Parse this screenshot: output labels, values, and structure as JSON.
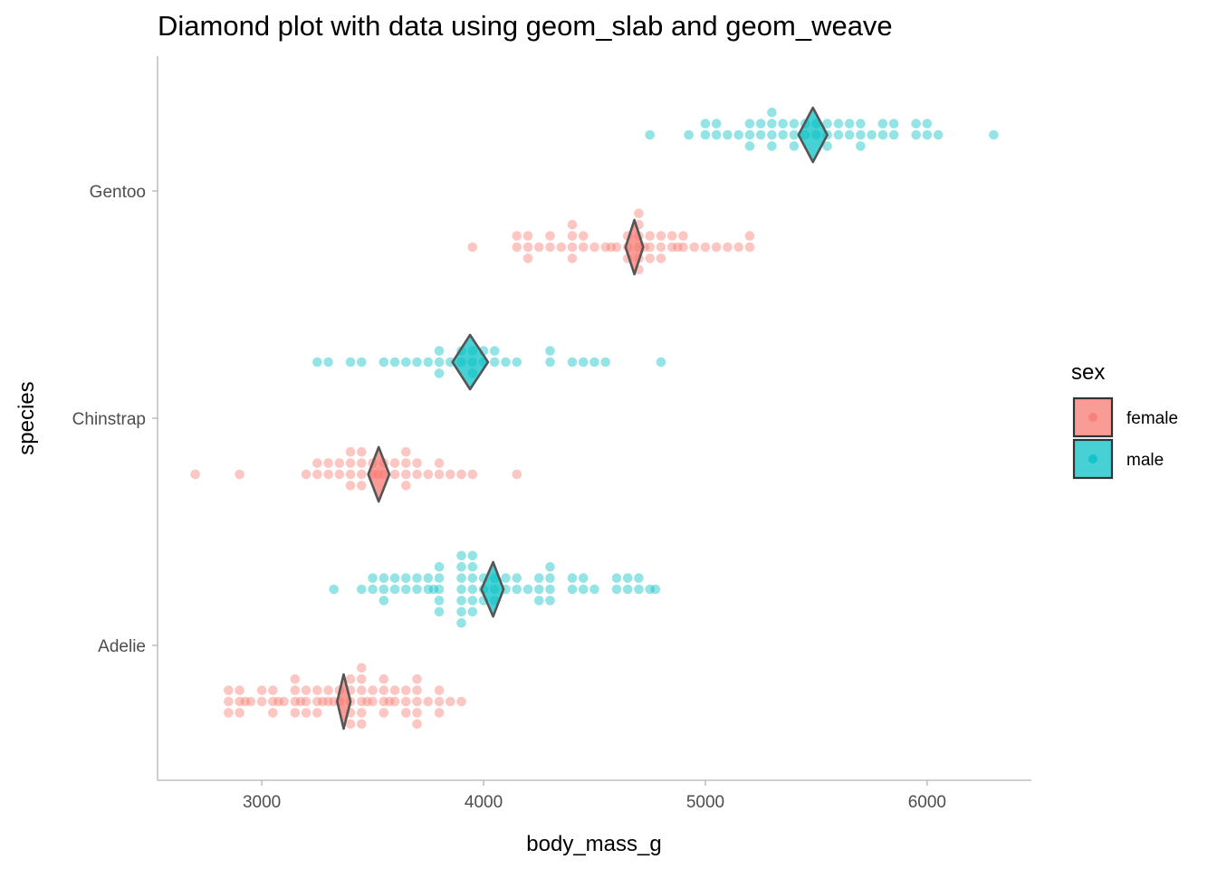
{
  "chart_data": {
    "type": "scatter",
    "title": "Diamond plot with data using geom_slab and geom_weave",
    "xlabel": "body_mass_g",
    "ylabel": "species",
    "xlim": [
      2530,
      6470
    ],
    "x_ticks": [
      3000,
      4000,
      5000,
      6000
    ],
    "categories": [
      "Adelie",
      "Chinstrap",
      "Gentoo"
    ],
    "grid": false,
    "legend": {
      "title": "sex",
      "position": "right",
      "entries": [
        {
          "name": "female",
          "color": "#F8766D"
        },
        {
          "name": "male",
          "color": "#00BFC4"
        }
      ]
    },
    "series": [
      {
        "name": "female",
        "color": "#F8766D",
        "groups": [
          {
            "species": "Adelie",
            "mean": 3369,
            "diamond_low": 3340,
            "diamond_high": 3400,
            "dots": [
              2850,
              2850,
              2850,
              2900,
              2900,
              2900,
              2925,
              2950,
              3000,
              3000,
              3050,
              3050,
              3050,
              3075,
              3100,
              3150,
              3150,
              3150,
              3150,
              3175,
              3200,
              3200,
              3200,
              3250,
              3250,
              3250,
              3275,
              3300,
              3300,
              3325,
              3350,
              3350,
              3400,
              3400,
              3400,
              3400,
              3400,
              3450,
              3450,
              3450,
              3450,
              3450,
              3450,
              3475,
              3500,
              3500,
              3550,
              3550,
              3550,
              3550,
              3575,
              3600,
              3600,
              3650,
              3650,
              3650,
              3700,
              3700,
              3700,
              3700,
              3700,
              3750,
              3800,
              3800,
              3800,
              3850,
              3900
            ]
          },
          {
            "species": "Chinstrap",
            "mean": 3527,
            "diamond_low": 3480,
            "diamond_high": 3575,
            "dots": [
              2700,
              2900,
              3200,
              3250,
              3250,
              3300,
              3300,
              3350,
              3350,
              3400,
              3400,
              3400,
              3400,
              3450,
              3450,
              3450,
              3450,
              3500,
              3500,
              3525,
              3550,
              3550,
              3600,
              3600,
              3650,
              3650,
              3650,
              3650,
              3700,
              3700,
              3750,
              3800,
              3800,
              3850,
              3900,
              3950,
              4150
            ]
          },
          {
            "species": "Gentoo",
            "mean": 4680,
            "diamond_low": 4640,
            "diamond_high": 4720,
            "dots": [
              3950,
              4150,
              4150,
              4200,
              4200,
              4200,
              4250,
              4300,
              4300,
              4350,
              4400,
              4400,
              4400,
              4400,
              4450,
              4450,
              4500,
              4550,
              4575,
              4600,
              4650,
              4650,
              4650,
              4700,
              4700,
              4700,
              4700,
              4700,
              4700,
              4725,
              4750,
              4750,
              4750,
              4800,
              4800,
              4800,
              4850,
              4850,
              4875,
              4900,
              4900,
              4950,
              5000,
              5050,
              5100,
              5150,
              5200,
              5200
            ]
          }
        ]
      },
      {
        "name": "male",
        "color": "#00BFC4",
        "groups": [
          {
            "species": "Adelie",
            "mean": 4043,
            "diamond_low": 3990,
            "diamond_high": 4090,
            "dots": [
              3325,
              3450,
              3500,
              3500,
              3550,
              3550,
              3550,
              3600,
              3600,
              3650,
              3650,
              3700,
              3700,
              3750,
              3750,
              3775,
              3800,
              3800,
              3800,
              3800,
              3800,
              3900,
              3900,
              3900,
              3900,
              3900,
              3900,
              3900,
              3950,
              3950,
              3950,
              3950,
              3950,
              3950,
              4000,
              4000,
              4000,
              4050,
              4050,
              4050,
              4100,
              4100,
              4150,
              4150,
              4200,
              4250,
              4250,
              4250,
              4300,
              4300,
              4300,
              4300,
              4400,
              4400,
              4450,
              4450,
              4500,
              4600,
              4600,
              4650,
              4650,
              4700,
              4700,
              4750,
              4775
            ]
          },
          {
            "species": "Chinstrap",
            "mean": 3939,
            "diamond_low": 3860,
            "diamond_high": 4020,
            "dots": [
              3250,
              3300,
              3400,
              3450,
              3550,
              3600,
              3650,
              3700,
              3750,
              3800,
              3800,
              3800,
              3850,
              3900,
              3900,
              3950,
              3950,
              3950,
              4000,
              4000,
              4050,
              4050,
              4100,
              4150,
              4300,
              4300,
              4400,
              4450,
              4500,
              4550,
              4800
            ]
          },
          {
            "species": "Gentoo",
            "mean": 5485,
            "diamond_low": 5420,
            "diamond_high": 5550,
            "dots": [
              4750,
              4925,
              5000,
              5000,
              5050,
              5050,
              5100,
              5150,
              5200,
              5200,
              5200,
              5250,
              5250,
              5300,
              5300,
              5300,
              5300,
              5350,
              5350,
              5400,
              5400,
              5400,
              5450,
              5450,
              5500,
              5500,
              5550,
              5550,
              5550,
              5600,
              5600,
              5650,
              5650,
              5700,
              5700,
              5700,
              5750,
              5800,
              5800,
              5850,
              5850,
              5950,
              5950,
              6000,
              6000,
              6050,
              6300
            ]
          }
        ]
      }
    ]
  }
}
